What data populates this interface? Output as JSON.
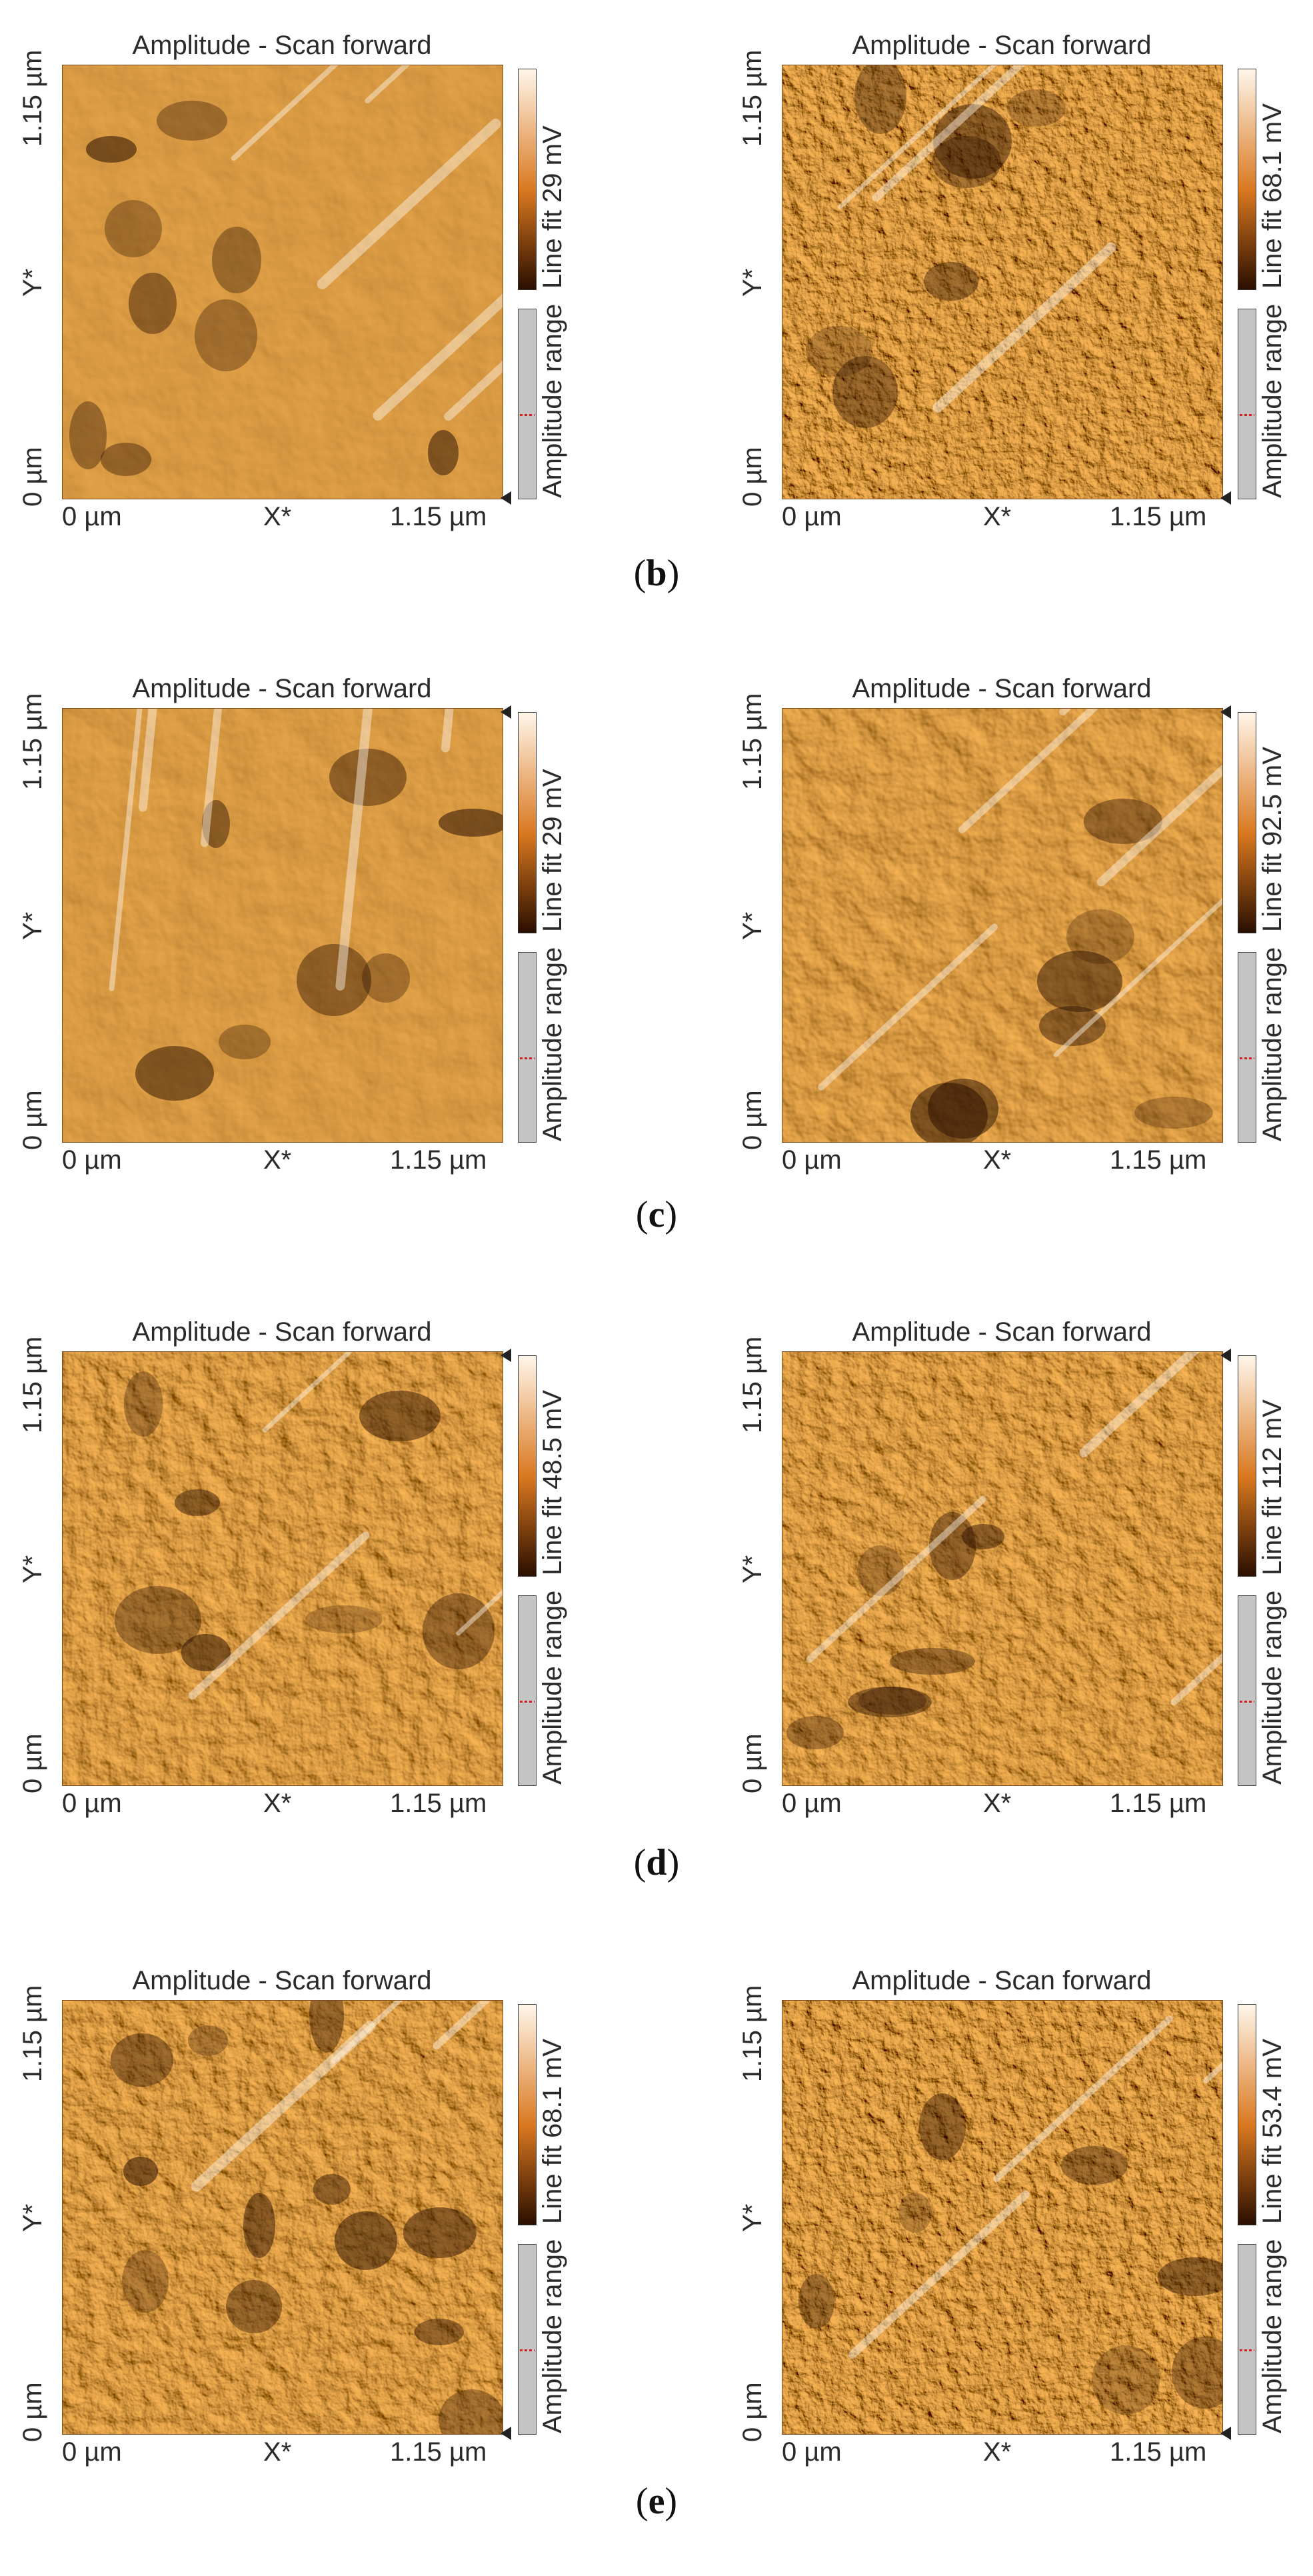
{
  "labels": {
    "title": "Amplitude - Scan forward",
    "y_top": "1.15 µm",
    "y_axis": "Y*",
    "y_bottom": "0 µm",
    "x_left": "0 µm",
    "x_axis": "X*",
    "x_right": "1.15 µm",
    "range": "Amplitude range"
  },
  "rows": [
    {
      "caption_prefix": "(",
      "caption_letter": "b",
      "caption_suffix": ")",
      "panels": [
        {
          "linefit": "Line fit 29 mV",
          "texture": "ridges-soft"
        },
        {
          "linefit": "Line fit 68.1 mV",
          "texture": "grainy-rough"
        }
      ]
    },
    {
      "caption_prefix": "(",
      "caption_letter": "c",
      "caption_suffix": ")",
      "panels": [
        {
          "linefit": "Line fit 29 mV",
          "texture": "streaks-soft"
        },
        {
          "linefit": "Line fit 92.5 mV",
          "texture": "diagonal-shear"
        }
      ]
    },
    {
      "caption_prefix": "(",
      "caption_letter": "d",
      "caption_suffix": ")",
      "panels": [
        {
          "linefit": "Line fit 48.5 mV",
          "texture": "blob-large"
        },
        {
          "linefit": "Line fit 112 mV",
          "texture": "folded-rough"
        }
      ]
    },
    {
      "caption_prefix": "(",
      "caption_letter": "e",
      "caption_suffix": ")",
      "panels": [
        {
          "linefit": "Line fit 68.1 mV",
          "texture": "pitted"
        },
        {
          "linefit": "Line fit 53.4 mV",
          "texture": "fine-rough"
        }
      ]
    }
  ],
  "colors": {
    "dark": "#2a0f00",
    "mid": "#d9781f",
    "light": "#fff6ea"
  }
}
